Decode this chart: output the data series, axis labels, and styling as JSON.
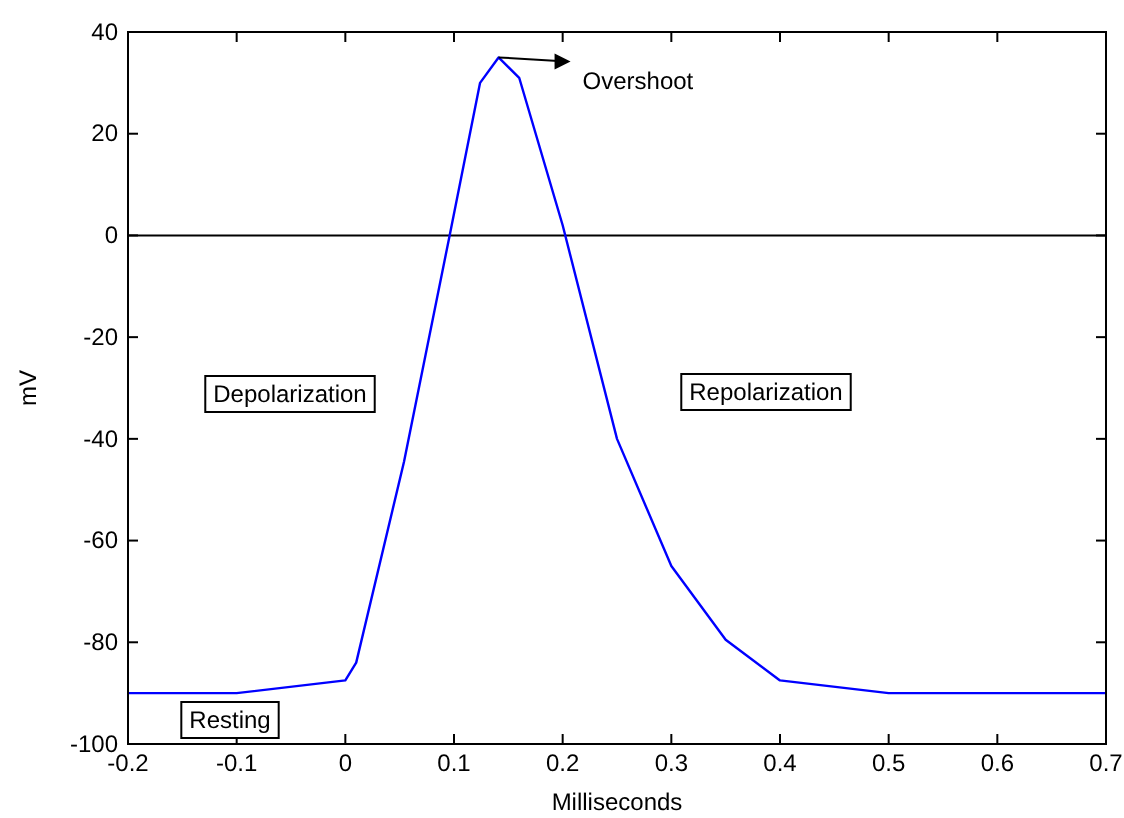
{
  "chart_data": {
    "type": "line",
    "xlabel": "Milliseconds",
    "ylabel": "mV",
    "x": [
      -0.2,
      -0.1,
      0,
      0.01,
      0.054,
      0.096,
      0.124,
      0.141,
      0.16,
      0.2,
      0.25,
      0.3,
      0.35,
      0.4,
      0.5,
      0.7
    ],
    "series": [
      {
        "color": "#0000ff",
        "values": [
          -90,
          -90,
          -87.5,
          -84,
          -44.5,
          0,
          30,
          35,
          31,
          2,
          -40,
          -65,
          -79.5,
          -87.5,
          -90,
          -90
        ]
      }
    ],
    "xlim": [
      -0.2,
      0.7
    ],
    "xticks": [
      -0.2,
      -0.1,
      0,
      0.1,
      0.2,
      0.3,
      0.4,
      0.5,
      0.6,
      0.7
    ],
    "ylim": [
      -100,
      40
    ],
    "yticks": [
      -100,
      -80,
      -60,
      -40,
      -20,
      0,
      20,
      40
    ],
    "ref_lines": [
      {
        "axis": "y",
        "value": 0,
        "color": "#000000"
      }
    ],
    "annotations": [
      {
        "text": "Overshoot",
        "x": 0.141,
        "y": 35
      },
      "Depolarization",
      "Repolarization",
      "Resting"
    ],
    "marker": "none",
    "line_style": "solid"
  }
}
